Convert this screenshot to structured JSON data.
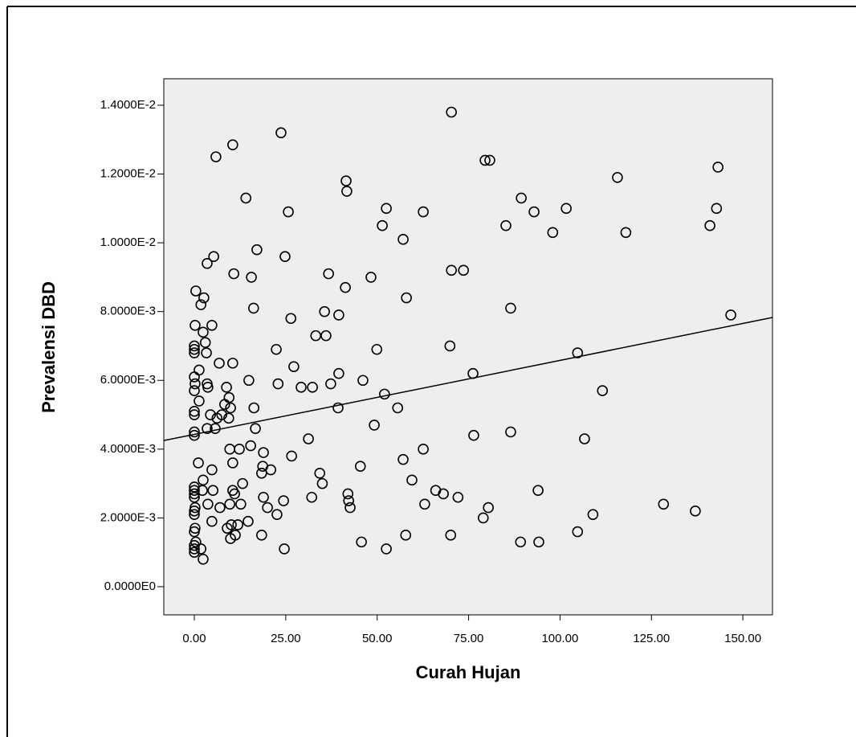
{
  "chart_data": {
    "type": "scatter",
    "xlabel": "Curah Hujan",
    "ylabel": "Prevalensi DBD",
    "color": "#000000",
    "background": "#eeeeee",
    "xlim": [
      -8.35,
      158.1
    ],
    "ylim": [
      -0.000818,
      0.01477
    ],
    "xticks": [
      {
        "value": 0,
        "label": "0.00"
      },
      {
        "value": 25,
        "label": "25.00"
      },
      {
        "value": 50,
        "label": "50.00"
      },
      {
        "value": 75,
        "label": "75.00"
      },
      {
        "value": 100,
        "label": "100.00"
      },
      {
        "value": 125,
        "label": "125.00"
      },
      {
        "value": 150,
        "label": "150.00"
      }
    ],
    "yticks": [
      {
        "value": 0,
        "label": "0.0000E0"
      },
      {
        "value": 0.002,
        "label": "2.0000E-3"
      },
      {
        "value": 0.004,
        "label": "4.0000E-3"
      },
      {
        "value": 0.006,
        "label": "6.0000E-3"
      },
      {
        "value": 0.008,
        "label": "8.0000E-3"
      },
      {
        "value": 0.01,
        "label": "1.0000E-2"
      },
      {
        "value": 0.012,
        "label": "1.2000E-2"
      },
      {
        "value": 0.014,
        "label": "1.4000E-2"
      }
    ],
    "x": [
      70.3,
      23.7,
      10.5,
      5.9,
      79.5,
      80.8,
      143.2,
      115.7,
      41.5,
      41.7,
      14.1,
      89.4,
      52.5,
      101.7,
      142.8,
      25.7,
      62.6,
      92.9,
      51.4,
      85.2,
      141,
      57.1,
      98,
      118,
      17.1,
      24.8,
      5.3,
      3.5,
      10.8,
      15.6,
      36.7,
      48.3,
      70.3,
      73.6,
      41.3,
      0.4,
      2.6,
      58,
      1.8,
      16.2,
      86.5,
      35.6,
      39.5,
      146.7,
      26.4,
      0.2,
      4.8,
      2.4,
      33.2,
      36,
      0,
      0,
      0,
      3,
      3.3,
      69.9,
      22.4,
      49.9,
      104.8,
      6.8,
      10.5,
      27.2,
      1.3,
      76.2,
      39.5,
      0,
      0.2,
      14.9,
      46.1,
      3.5,
      3.7,
      22.9,
      37.3,
      29.2,
      32.3,
      8.8,
      0,
      111.6,
      52,
      9.5,
      1.3,
      16.3,
      39.3,
      55.6,
      0,
      0,
      4.4,
      8.3,
      7.5,
      9.4,
      6.2,
      9.9,
      49.2,
      5.7,
      3.5,
      0,
      0,
      86.5,
      16.7,
      76.4,
      106.7,
      31.2,
      15.4,
      9.7,
      12.3,
      18.9,
      62.6,
      26.6,
      57.1,
      1.1,
      10.5,
      18.7,
      20.9,
      18.4,
      4.8,
      45.4,
      34.3,
      35,
      13.2,
      59.5,
      2.4,
      0,
      0,
      0,
      0,
      2.2,
      5.1,
      10.5,
      11,
      42,
      42.2,
      66,
      68.1,
      72.1,
      94,
      18.9,
      32.1,
      24.4,
      9.7,
      12.7,
      63,
      128.3,
      137,
      3.7,
      7,
      0.2,
      0,
      0,
      42.6,
      80.4,
      20,
      22.6,
      109,
      79,
      4.8,
      10.1,
      11.9,
      9,
      14.7,
      0.2,
      0,
      104.8,
      18.4,
      11.2,
      9.9,
      57.8,
      70.1,
      0.4,
      0,
      0,
      0,
      45.7,
      89.2,
      94.2,
      1.8,
      24.6,
      52.5,
      2.4
    ],
    "values": [
      0.0138,
      0.0132,
      0.01285,
      0.0125,
      0.0124,
      0.0124,
      0.0122,
      0.0119,
      0.0118,
      0.0115,
      0.0113,
      0.0113,
      0.011,
      0.011,
      0.011,
      0.0109,
      0.0109,
      0.0109,
      0.0105,
      0.0105,
      0.0105,
      0.0101,
      0.0103,
      0.0103,
      0.0098,
      0.0096,
      0.0096,
      0.0094,
      0.0091,
      0.009,
      0.0091,
      0.009,
      0.0092,
      0.0092,
      0.0087,
      0.0086,
      0.0084,
      0.0084,
      0.0082,
      0.0081,
      0.0081,
      0.008,
      0.0079,
      0.0079,
      0.0078,
      0.0076,
      0.0076,
      0.0074,
      0.0073,
      0.0073,
      0.007,
      0.0069,
      0.0068,
      0.0071,
      0.0068,
      0.007,
      0.0069,
      0.0069,
      0.0068,
      0.0065,
      0.0065,
      0.0064,
      0.0063,
      0.0062,
      0.0062,
      0.0061,
      0.0059,
      0.006,
      0.006,
      0.0059,
      0.0058,
      0.0059,
      0.0059,
      0.0058,
      0.0058,
      0.0058,
      0.0057,
      0.0057,
      0.0056,
      0.0055,
      0.0054,
      0.0052,
      0.0052,
      0.0052,
      0.0051,
      0.005,
      0.005,
      0.0053,
      0.005,
      0.0049,
      0.0049,
      0.0052,
      0.0047,
      0.0046,
      0.0046,
      0.0045,
      0.0044,
      0.0045,
      0.0046,
      0.0044,
      0.0043,
      0.0043,
      0.0041,
      0.004,
      0.004,
      0.0039,
      0.004,
      0.0038,
      0.0037,
      0.0036,
      0.0036,
      0.0035,
      0.0034,
      0.0033,
      0.0034,
      0.0035,
      0.0033,
      0.003,
      0.003,
      0.0031,
      0.0031,
      0.0029,
      0.0028,
      0.0027,
      0.0026,
      0.0028,
      0.0028,
      0.0028,
      0.0027,
      0.0027,
      0.0025,
      0.0028,
      0.0027,
      0.0026,
      0.0028,
      0.0026,
      0.0026,
      0.0025,
      0.0024,
      0.0024,
      0.0024,
      0.0024,
      0.0022,
      0.0024,
      0.0023,
      0.0023,
      0.0022,
      0.0021,
      0.0023,
      0.0023,
      0.0023,
      0.0021,
      0.0021,
      0.002,
      0.0019,
      0.0018,
      0.0018,
      0.0017,
      0.0019,
      0.0017,
      0.0016,
      0.0016,
      0.0015,
      0.0015,
      0.0014,
      0.0015,
      0.0015,
      0.0013,
      0.0012,
      0.0011,
      0.001,
      0.0013,
      0.0013,
      0.0013,
      0.0011,
      0.0011,
      0.0011,
      0.0008
    ],
    "fit_line": {
      "x": [
        -8.35,
        158.1
      ],
      "y": [
        0.00425,
        0.00783
      ]
    }
  }
}
